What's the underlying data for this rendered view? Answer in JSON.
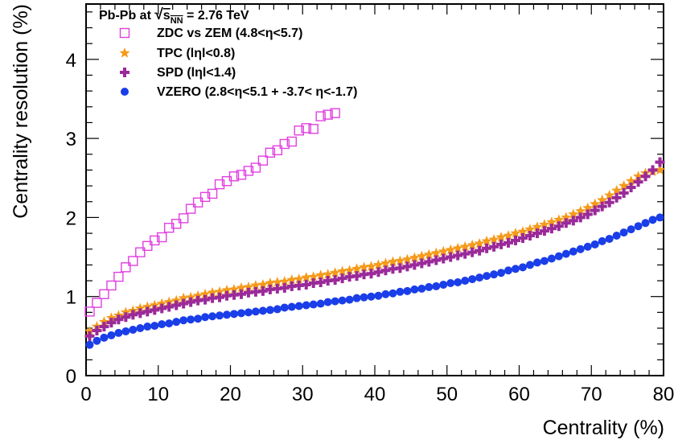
{
  "chart_data": {
    "type": "scatter",
    "header": {
      "prefix": "Pb-Pb at ",
      "sqrt_symbol": "√",
      "s_letter": "s",
      "s_subscript": "NN",
      "suffix": " = 2.76 TeV"
    },
    "xlabel": "Centrality (%)",
    "ylabel": "Centrality resolution (%)",
    "xlim": [
      0,
      80
    ],
    "ylim": [
      0,
      4.7
    ],
    "x_ticks": [
      "0",
      "10",
      "20",
      "30",
      "40",
      "50",
      "60",
      "70",
      "80"
    ],
    "y_ticks": [
      "0",
      "1",
      "2",
      "3",
      "4"
    ],
    "grid": false,
    "legend_position": "top-left",
    "series": [
      {
        "name": "ZDC vs ZEM (4.8<η<5.7)",
        "marker": "open-square",
        "color": "#e040e0",
        "x": [
          0.5,
          1.5,
          2.5,
          3.5,
          4.5,
          5.5,
          6.5,
          7.5,
          8.5,
          9.5,
          10.5,
          11.5,
          12.5,
          13.5,
          14.5,
          15.5,
          16.5,
          17.5,
          18.5,
          19.5,
          20.5,
          21.5,
          22.5,
          23.5,
          24.5,
          25.5,
          26.5,
          27.5,
          28.5,
          29.5,
          30.5,
          31.5,
          32.5,
          33.5,
          34.5
        ],
        "y": [
          0.81,
          0.92,
          1.03,
          1.14,
          1.25,
          1.37,
          1.45,
          1.56,
          1.64,
          1.71,
          1.75,
          1.87,
          1.92,
          1.99,
          2.11,
          2.19,
          2.26,
          2.3,
          2.42,
          2.46,
          2.52,
          2.54,
          2.59,
          2.63,
          2.72,
          2.82,
          2.85,
          2.93,
          2.96,
          3.1,
          3.13,
          3.12,
          3.28,
          3.3,
          3.32
        ]
      },
      {
        "name": "TPC (lηl<0.8)",
        "marker": "star",
        "color": "#f59a1a",
        "x": [
          0.5,
          1.5,
          2.5,
          3.5,
          4.5,
          5.5,
          6.5,
          7.5,
          8.5,
          9.5,
          10.5,
          11.5,
          12.5,
          13.5,
          14.5,
          15.5,
          16.5,
          17.5,
          18.5,
          19.5,
          20.5,
          21.5,
          22.5,
          23.5,
          24.5,
          25.5,
          26.5,
          27.5,
          28.5,
          29.5,
          30.5,
          31.5,
          32.5,
          33.5,
          34.5,
          35.5,
          36.5,
          37.5,
          38.5,
          39.5,
          40.5,
          41.5,
          42.5,
          43.5,
          44.5,
          45.5,
          46.5,
          47.5,
          48.5,
          49.5,
          50.5,
          51.5,
          52.5,
          53.5,
          54.5,
          55.5,
          56.5,
          57.5,
          58.5,
          59.5,
          60.5,
          61.5,
          62.5,
          63.5,
          64.5,
          65.5,
          66.5,
          67.5,
          68.5,
          69.5,
          70.5,
          71.5,
          72.5,
          73.5,
          74.5,
          75.5,
          76.5,
          77.5,
          78.5,
          79.5
        ],
        "y": [
          0.56,
          0.62,
          0.68,
          0.73,
          0.76,
          0.8,
          0.82,
          0.85,
          0.87,
          0.89,
          0.91,
          0.93,
          0.95,
          0.98,
          0.99,
          1.01,
          1.03,
          1.05,
          1.06,
          1.08,
          1.09,
          1.11,
          1.12,
          1.14,
          1.15,
          1.17,
          1.18,
          1.19,
          1.21,
          1.22,
          1.24,
          1.25,
          1.27,
          1.28,
          1.3,
          1.32,
          1.33,
          1.35,
          1.37,
          1.38,
          1.4,
          1.42,
          1.44,
          1.45,
          1.47,
          1.49,
          1.51,
          1.53,
          1.55,
          1.57,
          1.59,
          1.61,
          1.63,
          1.65,
          1.67,
          1.7,
          1.72,
          1.75,
          1.77,
          1.8,
          1.82,
          1.85,
          1.88,
          1.91,
          1.94,
          1.97,
          2.0,
          2.04,
          2.08,
          2.12,
          2.17,
          2.22,
          2.28,
          2.34,
          2.4,
          2.46,
          2.52,
          2.56,
          2.58,
          2.6
        ]
      },
      {
        "name": "SPD (lηl<1.4)",
        "marker": "cross",
        "color": "#9a2a9a",
        "x": [
          0.5,
          1.5,
          2.5,
          3.5,
          4.5,
          5.5,
          6.5,
          7.5,
          8.5,
          9.5,
          10.5,
          11.5,
          12.5,
          13.5,
          14.5,
          15.5,
          16.5,
          17.5,
          18.5,
          19.5,
          20.5,
          21.5,
          22.5,
          23.5,
          24.5,
          25.5,
          26.5,
          27.5,
          28.5,
          29.5,
          30.5,
          31.5,
          32.5,
          33.5,
          34.5,
          35.5,
          36.5,
          37.5,
          38.5,
          39.5,
          40.5,
          41.5,
          42.5,
          43.5,
          44.5,
          45.5,
          46.5,
          47.5,
          48.5,
          49.5,
          50.5,
          51.5,
          52.5,
          53.5,
          54.5,
          55.5,
          56.5,
          57.5,
          58.5,
          59.5,
          60.5,
          61.5,
          62.5,
          63.5,
          64.5,
          65.5,
          66.5,
          67.5,
          68.5,
          69.5,
          70.5,
          71.5,
          72.5,
          73.5,
          74.5,
          75.5,
          76.5,
          77.5,
          78.5,
          79.5
        ],
        "y": [
          0.5,
          0.57,
          0.62,
          0.67,
          0.71,
          0.74,
          0.77,
          0.79,
          0.81,
          0.83,
          0.85,
          0.87,
          0.89,
          0.91,
          0.93,
          0.95,
          0.96,
          0.98,
          0.99,
          1.01,
          1.02,
          1.03,
          1.05,
          1.06,
          1.07,
          1.09,
          1.1,
          1.11,
          1.13,
          1.14,
          1.15,
          1.17,
          1.18,
          1.2,
          1.21,
          1.23,
          1.25,
          1.26,
          1.28,
          1.29,
          1.31,
          1.33,
          1.35,
          1.36,
          1.38,
          1.4,
          1.42,
          1.44,
          1.46,
          1.48,
          1.5,
          1.52,
          1.54,
          1.56,
          1.58,
          1.61,
          1.63,
          1.66,
          1.68,
          1.71,
          1.74,
          1.77,
          1.8,
          1.83,
          1.86,
          1.89,
          1.93,
          1.96,
          2.0,
          2.04,
          2.09,
          2.14,
          2.19,
          2.25,
          2.31,
          2.38,
          2.45,
          2.52,
          2.6,
          2.7
        ]
      },
      {
        "name": "VZERO (2.8<η<5.1 + -3.7< η<-1.7)",
        "marker": "filled-circle",
        "color": "#1a3ee8",
        "x": [
          0.5,
          1.5,
          2.5,
          3.5,
          4.5,
          5.5,
          6.5,
          7.5,
          8.5,
          9.5,
          10.5,
          11.5,
          12.5,
          13.5,
          14.5,
          15.5,
          16.5,
          17.5,
          18.5,
          19.5,
          20.5,
          21.5,
          22.5,
          23.5,
          24.5,
          25.5,
          26.5,
          27.5,
          28.5,
          29.5,
          30.5,
          31.5,
          32.5,
          33.5,
          34.5,
          35.5,
          36.5,
          37.5,
          38.5,
          39.5,
          40.5,
          41.5,
          42.5,
          43.5,
          44.5,
          45.5,
          46.5,
          47.5,
          48.5,
          49.5,
          50.5,
          51.5,
          52.5,
          53.5,
          54.5,
          55.5,
          56.5,
          57.5,
          58.5,
          59.5,
          60.5,
          61.5,
          62.5,
          63.5,
          64.5,
          65.5,
          66.5,
          67.5,
          68.5,
          69.5,
          70.5,
          71.5,
          72.5,
          73.5,
          74.5,
          75.5,
          76.5,
          77.5,
          78.5,
          79.5
        ],
        "y": [
          0.39,
          0.44,
          0.48,
          0.51,
          0.54,
          0.56,
          0.58,
          0.6,
          0.62,
          0.63,
          0.65,
          0.66,
          0.68,
          0.7,
          0.71,
          0.72,
          0.74,
          0.75,
          0.76,
          0.77,
          0.78,
          0.79,
          0.8,
          0.81,
          0.82,
          0.83,
          0.84,
          0.86,
          0.87,
          0.88,
          0.89,
          0.9,
          0.91,
          0.93,
          0.94,
          0.95,
          0.96,
          0.98,
          0.99,
          1.0,
          1.01,
          1.03,
          1.04,
          1.06,
          1.07,
          1.09,
          1.1,
          1.12,
          1.13,
          1.15,
          1.17,
          1.18,
          1.2,
          1.22,
          1.24,
          1.26,
          1.28,
          1.3,
          1.33,
          1.35,
          1.37,
          1.4,
          1.43,
          1.45,
          1.48,
          1.51,
          1.54,
          1.57,
          1.6,
          1.63,
          1.66,
          1.7,
          1.73,
          1.77,
          1.81,
          1.85,
          1.89,
          1.93,
          1.97,
          2.0
        ]
      }
    ]
  }
}
